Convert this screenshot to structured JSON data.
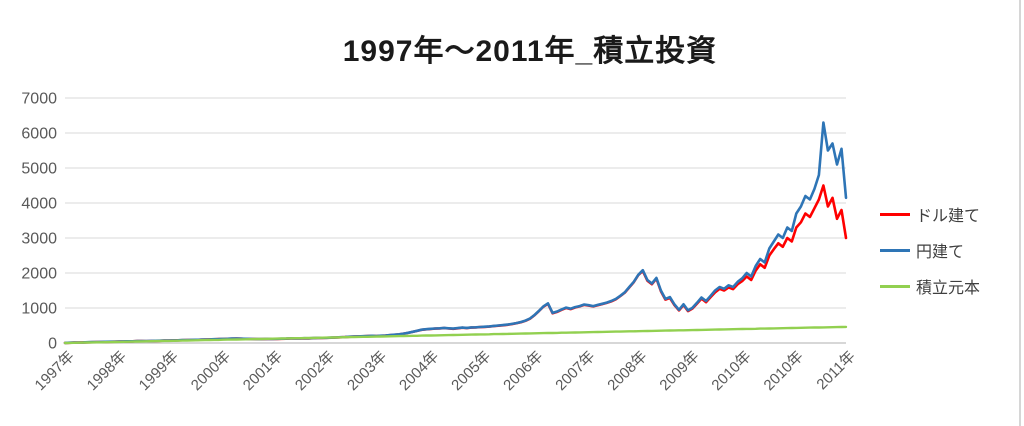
{
  "chart_data": {
    "type": "line",
    "title": "1997年～2011年_積立投資",
    "xlabel": "",
    "ylabel": "",
    "ylim": [
      0,
      7000
    ],
    "y_ticks": [
      0,
      1000,
      2000,
      3000,
      4000,
      5000,
      6000,
      7000
    ],
    "x_tick_labels": [
      "1997年",
      "1998年",
      "1999年",
      "2000年",
      "2001年",
      "2002年",
      "2003年",
      "2004年",
      "2005年",
      "2006年",
      "2007年",
      "2008年",
      "2009年",
      "2010年",
      "2010年",
      "2011年"
    ],
    "grid": "horizontal",
    "legend_position": "right",
    "colors": {
      "grid": "#d9d9d9",
      "axis_line": "#bfbfbf",
      "axis_text": "#595959",
      "title_text": "#1a1a1a",
      "border": "#d6d6d6"
    },
    "series": [
      {
        "name": "ドル建て",
        "color": "#ff0000",
        "values": [
          3,
          7,
          11,
          14,
          17,
          21,
          24,
          27,
          29,
          32,
          35,
          37,
          41,
          44,
          46,
          49,
          53,
          57,
          52,
          57,
          61,
          64,
          68,
          70,
          73,
          76,
          80,
          83,
          86,
          90,
          93,
          98,
          102,
          106,
          110,
          114,
          119,
          124,
          126,
          122,
          118,
          115,
          112,
          109,
          112,
          116,
          114,
          117,
          120,
          124,
          128,
          133,
          129,
          135,
          132,
          138,
          142,
          146,
          148,
          151,
          156,
          162,
          170,
          178,
          182,
          188,
          192,
          197,
          202,
          199,
          205,
          212,
          222,
          233,
          247,
          267,
          289,
          316,
          346,
          376,
          391,
          401,
          411,
          417,
          427,
          415,
          406,
          421,
          436,
          426,
          440,
          446,
          453,
          460,
          470,
          483,
          495,
          505,
          520,
          540,
          565,
          595,
          635,
          695,
          795,
          915,
          1040,
          1120,
          850,
          890,
          950,
          1000,
          970,
          1015,
          1045,
          1090,
          1070,
          1045,
          1080,
          1110,
          1145,
          1190,
          1250,
          1340,
          1440,
          1590,
          1740,
          1940,
          2060,
          1780,
          1680,
          1840,
          1480,
          1240,
          1290,
          1080,
          930,
          1085,
          910,
          985,
          1125,
          1270,
          1165,
          1310,
          1450,
          1550,
          1500,
          1590,
          1540,
          1680,
          1770,
          1900,
          1800,
          2070,
          2250,
          2150,
          2500,
          2680,
          2850,
          2750,
          3000,
          2900,
          3300,
          3450,
          3700,
          3600,
          3850,
          4100,
          4500,
          3900,
          4150,
          3550,
          3800,
          3000
        ]
      },
      {
        "name": "円建て",
        "color": "#2e75b6",
        "values": [
          3,
          8,
          12,
          15,
          18,
          22,
          25,
          28,
          30,
          33,
          36,
          38,
          42,
          45,
          48,
          50,
          55,
          58,
          54,
          59,
          63,
          66,
          70,
          72,
          75,
          78,
          82,
          85,
          88,
          92,
          95,
          100,
          104,
          108,
          112,
          116,
          121,
          126,
          128,
          124,
          120,
          117,
          114,
          111,
          114,
          118,
          116,
          119,
          122,
          126,
          130,
          135,
          131,
          137,
          134,
          140,
          145,
          148,
          150,
          153,
          158,
          165,
          172,
          180,
          185,
          190,
          195,
          200,
          205,
          201,
          208,
          215,
          225,
          236,
          250,
          270,
          292,
          320,
          350,
          380,
          395,
          405,
          415,
          421,
          432,
          420,
          410,
          426,
          440,
          430,
          445,
          450,
          458,
          465,
          475,
          488,
          500,
          510,
          525,
          545,
          570,
          600,
          640,
          700,
          800,
          920,
          1050,
          1130,
          860,
          900,
          960,
          1010,
          980,
          1025,
          1055,
          1100,
          1080,
          1055,
          1090,
          1120,
          1155,
          1200,
          1260,
          1350,
          1450,
          1600,
          1750,
          1950,
          2080,
          1800,
          1700,
          1860,
          1500,
          1260,
          1310,
          1100,
          950,
          1105,
          930,
          1005,
          1150,
          1300,
          1200,
          1350,
          1500,
          1600,
          1550,
          1650,
          1600,
          1750,
          1850,
          2000,
          1900,
          2200,
          2400,
          2300,
          2700,
          2900,
          3100,
          3000,
          3300,
          3200,
          3700,
          3900,
          4200,
          4100,
          4400,
          4800,
          6300,
          5500,
          5700,
          5100,
          5550,
          4150
        ]
      },
      {
        "name": "積立元本",
        "color": "#92d050",
        "values": [
          0,
          3,
          5,
          8,
          11,
          13,
          16,
          19,
          21,
          24,
          27,
          29,
          32,
          35,
          37,
          40,
          43,
          45,
          48,
          51,
          53,
          56,
          59,
          61,
          64,
          67,
          69,
          72,
          74,
          77,
          80,
          82,
          85,
          88,
          90,
          93,
          96,
          98,
          101,
          104,
          106,
          109,
          112,
          114,
          117,
          120,
          122,
          125,
          128,
          130,
          133,
          136,
          138,
          141,
          144,
          146,
          149,
          152,
          154,
          157,
          160,
          162,
          165,
          168,
          170,
          173,
          176,
          178,
          181,
          184,
          186,
          189,
          192,
          194,
          197,
          200,
          202,
          205,
          207,
          210,
          213,
          215,
          218,
          221,
          223,
          226,
          229,
          231,
          234,
          237,
          239,
          242,
          245,
          247,
          250,
          253,
          255,
          258,
          261,
          263,
          266,
          269,
          271,
          274,
          277,
          279,
          282,
          285,
          287,
          290,
          293,
          295,
          298,
          301,
          303,
          306,
          309,
          311,
          314,
          317,
          319,
          322,
          325,
          327,
          330,
          333,
          335,
          338,
          340,
          343,
          346,
          348,
          351,
          354,
          356,
          359,
          362,
          364,
          367,
          370,
          372,
          375,
          378,
          380,
          383,
          386,
          388,
          391,
          394,
          396,
          399,
          402,
          404,
          407,
          410,
          412,
          415,
          418,
          420,
          423,
          426,
          428,
          431,
          434,
          436,
          439,
          442,
          444,
          447,
          450,
          452,
          455,
          458,
          460
        ]
      }
    ]
  }
}
